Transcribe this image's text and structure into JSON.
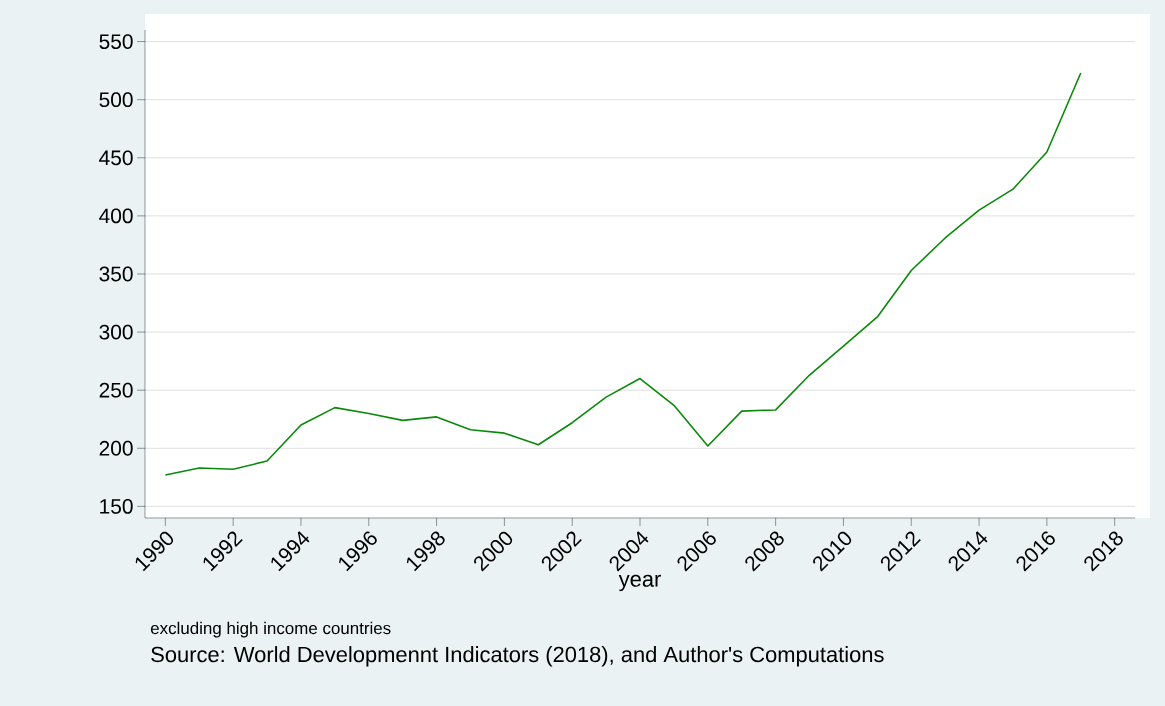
{
  "chart_data": {
    "type": "line",
    "xlabel": "year",
    "annotations": [
      "excluding high income countries",
      "Source: World Developmennt Indicators (2018), and Author's Computations"
    ],
    "x": [
      1990,
      1991,
      1992,
      1993,
      1994,
      1995,
      1996,
      1997,
      1998,
      1999,
      2000,
      2001,
      2002,
      2003,
      2004,
      2005,
      2006,
      2007,
      2008,
      2009,
      2010,
      2011,
      2012,
      2013,
      2014,
      2015,
      2016,
      2017
    ],
    "values": [
      177,
      183,
      182,
      189,
      220,
      235,
      230,
      224,
      227,
      216,
      213,
      203,
      222,
      244,
      260,
      237,
      202,
      232,
      233,
      263,
      288,
      313,
      353,
      381,
      405,
      423,
      455,
      523
    ],
    "color": "#0a8a0a",
    "xlim": [
      1989.4,
      2018.6
    ],
    "ylim": [
      140,
      560
    ],
    "xticks": [
      1990,
      1992,
      1994,
      1996,
      1998,
      2000,
      2002,
      2004,
      2006,
      2008,
      2010,
      2012,
      2014,
      2016,
      2018
    ],
    "yticks": [
      150,
      200,
      250,
      300,
      350,
      400,
      450,
      500,
      550
    ],
    "grid": "y"
  }
}
